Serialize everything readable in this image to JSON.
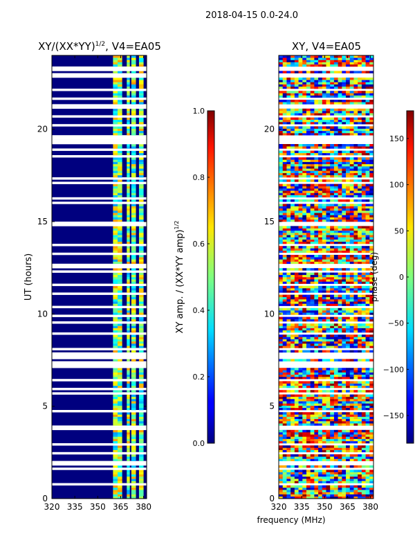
{
  "suptitle": "2018-04-15 0.0-24.0",
  "chart_data": [
    {
      "type": "heatmap",
      "title": "XY/(XX*YY)^{1/2}, V4=EA05",
      "title_main": "XY/(XX*YY)",
      "title_sup": "1/2",
      "title_tail": ", V4=EA05",
      "xlabel": "",
      "ylabel": "UT (hours)",
      "xlim": [
        320,
        382
      ],
      "ylim": [
        0,
        24
      ],
      "xticks": [
        320,
        335,
        350,
        365,
        380
      ],
      "yticks": [
        0,
        5,
        10,
        15,
        20
      ],
      "colorbar": {
        "label": "XY amp. / (XX*YY amp)^{1/2}",
        "label_main": "XY amp. / (XX*YY amp)",
        "label_sup": "1/2",
        "range": [
          0.0,
          1.0
        ],
        "ticks": [
          "0.0",
          "0.2",
          "0.4",
          "0.6",
          "0.8",
          "1.0"
        ],
        "colormap": "jet"
      },
      "bright_channel_bands_mhz": [
        [
          360,
          363
        ],
        [
          363,
          366
        ],
        [
          369,
          371
        ],
        [
          372,
          375
        ],
        [
          377,
          380
        ]
      ],
      "flagged_rows": "many horizontal white (flagged) time rows"
    },
    {
      "type": "heatmap",
      "title": "XY, V4=EA05",
      "xlabel": "frequency (MHz)",
      "ylabel": "",
      "xlim": [
        320,
        382
      ],
      "ylim": [
        0,
        24
      ],
      "xticks": [
        320,
        335,
        350,
        365,
        380
      ],
      "yticks": [
        0,
        5,
        10,
        15,
        20
      ],
      "colorbar": {
        "label": "phase (deg)",
        "range": [
          -180,
          180
        ],
        "ticks": [
          "−150",
          "−100",
          "−50",
          "0",
          "50",
          "100",
          "150"
        ],
        "colormap": "jet"
      },
      "flagged_rows": "many horizontal white (flagged) time rows"
    }
  ],
  "colors": {
    "jet_low": "#00007f",
    "jet_mid": "#7fff7f",
    "jet_high": "#7f0000",
    "flagged": "#ffffff"
  }
}
